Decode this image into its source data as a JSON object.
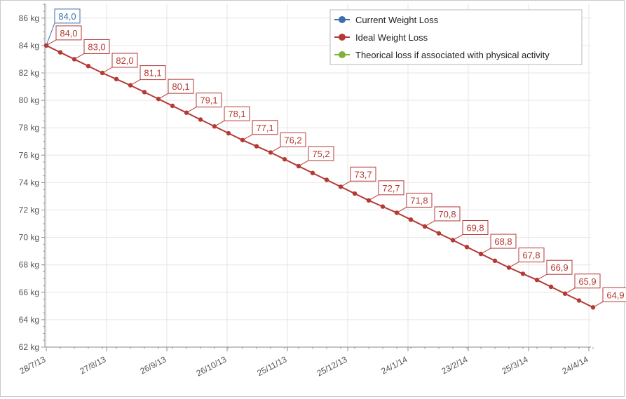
{
  "chart_data": {
    "type": "line",
    "ylabel": "",
    "xlabel": "",
    "y_unit": "kg",
    "ylim": [
      62,
      87
    ],
    "y_ticks": [
      62,
      64,
      66,
      68,
      70,
      72,
      74,
      76,
      78,
      80,
      82,
      84,
      86
    ],
    "y_tick_labels": [
      "62 kg",
      "64 kg",
      "66 kg",
      "68 kg",
      "70 kg",
      "72 kg",
      "74 kg",
      "76 kg",
      "78 kg",
      "80 kg",
      "82 kg",
      "84 kg",
      "86 kg"
    ],
    "x_tick_labels": [
      "28/7/13",
      "27/8/13",
      "26/9/13",
      "26/10/13",
      "25/11/13",
      "25/12/13",
      "24/1/14",
      "23/2/14",
      "25/3/14",
      "24/4/14"
    ],
    "legend_position": "top-right",
    "grid": true,
    "series": [
      {
        "name": "Current Weight Loss",
        "color": "#3d6faa",
        "points": [
          {
            "x": 0,
            "y": 84.0
          }
        ],
        "data_labels": [
          {
            "x": 0,
            "y": 84.0,
            "label": "84,0"
          }
        ]
      },
      {
        "name": "Ideal Weight Loss",
        "color": "#b43a35",
        "points": [
          {
            "x": 0,
            "y": 84.0
          },
          {
            "x": 1,
            "y": 83.5
          },
          {
            "x": 2,
            "y": 83.0
          },
          {
            "x": 3,
            "y": 82.5
          },
          {
            "x": 4,
            "y": 82.0
          },
          {
            "x": 5,
            "y": 81.55
          },
          {
            "x": 6,
            "y": 81.1
          },
          {
            "x": 7,
            "y": 80.6
          },
          {
            "x": 8,
            "y": 80.1
          },
          {
            "x": 9,
            "y": 79.6
          },
          {
            "x": 10,
            "y": 79.1
          },
          {
            "x": 11,
            "y": 78.6
          },
          {
            "x": 12,
            "y": 78.1
          },
          {
            "x": 13,
            "y": 77.6
          },
          {
            "x": 14,
            "y": 77.1
          },
          {
            "x": 15,
            "y": 76.65
          },
          {
            "x": 16,
            "y": 76.2
          },
          {
            "x": 17,
            "y": 75.7
          },
          {
            "x": 18,
            "y": 75.2
          },
          {
            "x": 19,
            "y": 74.7
          },
          {
            "x": 20,
            "y": 74.2
          },
          {
            "x": 21,
            "y": 73.7
          },
          {
            "x": 22,
            "y": 73.2
          },
          {
            "x": 23,
            "y": 72.7
          },
          {
            "x": 24,
            "y": 72.25
          },
          {
            "x": 25,
            "y": 71.8
          },
          {
            "x": 26,
            "y": 71.3
          },
          {
            "x": 27,
            "y": 70.8
          },
          {
            "x": 28,
            "y": 70.3
          },
          {
            "x": 29,
            "y": 69.8
          },
          {
            "x": 30,
            "y": 69.3
          },
          {
            "x": 31,
            "y": 68.8
          },
          {
            "x": 32,
            "y": 68.3
          },
          {
            "x": 33,
            "y": 67.8
          },
          {
            "x": 34,
            "y": 67.35
          },
          {
            "x": 35,
            "y": 66.9
          },
          {
            "x": 36,
            "y": 66.4
          },
          {
            "x": 37,
            "y": 65.9
          },
          {
            "x": 38,
            "y": 65.4
          },
          {
            "x": 39,
            "y": 64.9
          }
        ],
        "data_labels": [
          {
            "x": 0,
            "y": 84.0,
            "label": "84,0"
          },
          {
            "x": 2,
            "y": 83.0,
            "label": "83,0"
          },
          {
            "x": 4,
            "y": 82.0,
            "label": "82,0"
          },
          {
            "x": 6,
            "y": 81.1,
            "label": "81,1"
          },
          {
            "x": 8,
            "y": 80.1,
            "label": "80,1"
          },
          {
            "x": 10,
            "y": 79.1,
            "label": "79,1"
          },
          {
            "x": 12,
            "y": 78.1,
            "label": "78,1"
          },
          {
            "x": 14,
            "y": 77.1,
            "label": "77,1"
          },
          {
            "x": 16,
            "y": 76.2,
            "label": "76,2"
          },
          {
            "x": 18,
            "y": 75.2,
            "label": "75,2"
          },
          {
            "x": 21,
            "y": 73.7,
            "label": "73,7"
          },
          {
            "x": 23,
            "y": 72.7,
            "label": "72,7"
          },
          {
            "x": 25,
            "y": 71.8,
            "label": "71,8"
          },
          {
            "x": 27,
            "y": 70.8,
            "label": "70,8"
          },
          {
            "x": 29,
            "y": 69.8,
            "label": "69,8"
          },
          {
            "x": 31,
            "y": 68.8,
            "label": "68,8"
          },
          {
            "x": 33,
            "y": 67.8,
            "label": "67,8"
          },
          {
            "x": 35,
            "y": 66.9,
            "label": "66,9"
          },
          {
            "x": 37,
            "y": 65.9,
            "label": "65,9"
          },
          {
            "x": 39,
            "y": 64.9,
            "label": "64,9"
          }
        ]
      },
      {
        "name": "Theorical loss if associated with physical activity",
        "color": "#7fb239",
        "points": [],
        "data_labels": []
      }
    ]
  }
}
